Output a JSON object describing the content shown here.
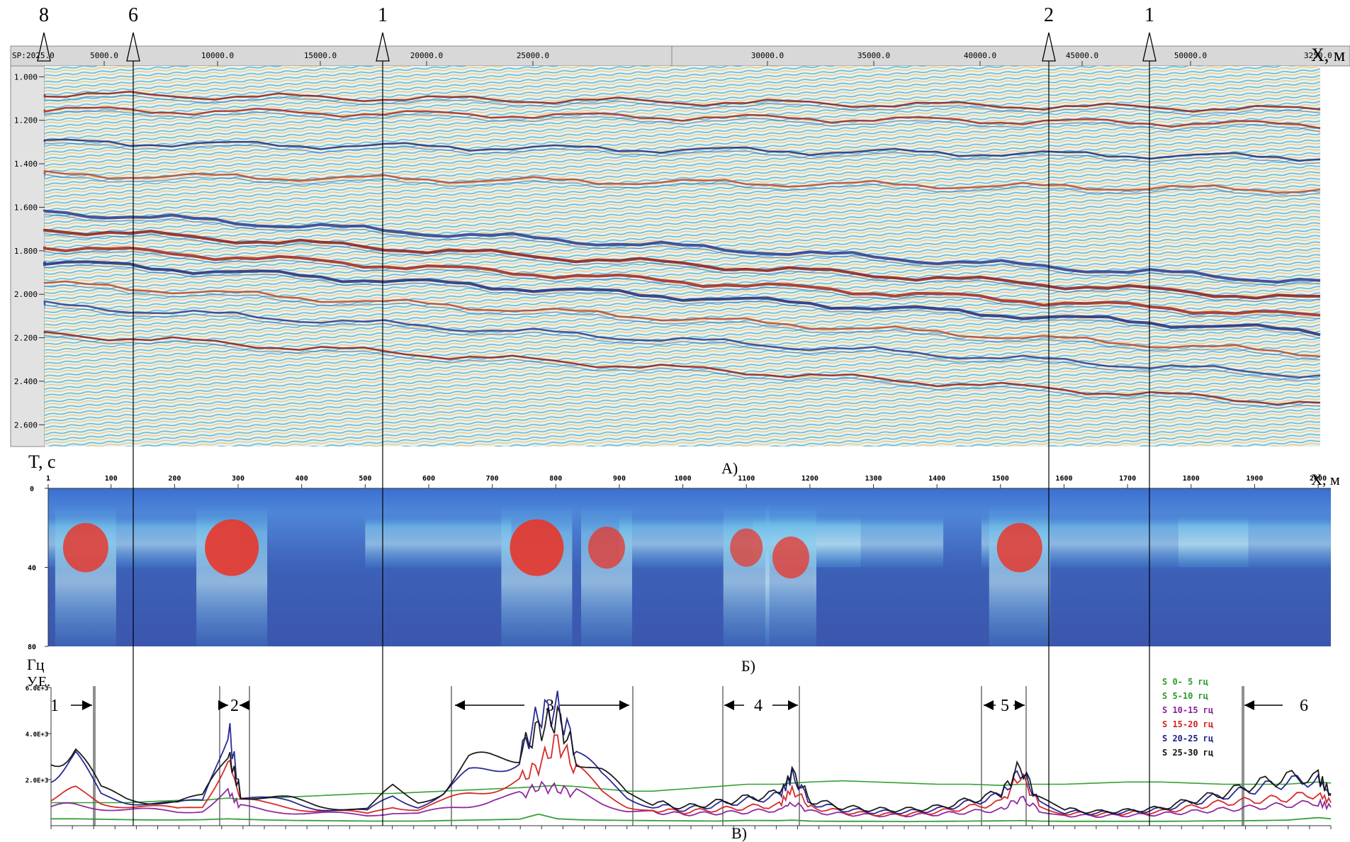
{
  "markers": {
    "top_labels": [
      "8",
      "6",
      "1",
      "2",
      "1"
    ]
  },
  "panel_a": {
    "caption": "А)",
    "sp_label": "SP:",
    "sp_start": "2025.0",
    "sp_end": "3250.0",
    "x_ticks": [
      "5000.0",
      "10000.0",
      "15000.0",
      "20000.0",
      "25000.0",
      "30000.0",
      "35000.0",
      "40000.0",
      "45000.0",
      "50000.0"
    ],
    "x_label": "X, м",
    "y_ticks": [
      "1.000",
      "1.200",
      "1.400",
      "1.600",
      "1.800",
      "2.000",
      "2.200",
      "2.400",
      "2.600"
    ],
    "y_label": "T, c"
  },
  "panel_b": {
    "caption": "Б)",
    "x_ticks": [
      "1",
      "100",
      "200",
      "300",
      "400",
      "500",
      "600",
      "700",
      "800",
      "900",
      "1000",
      "1100",
      "1200",
      "1300",
      "1400",
      "1500",
      "1600",
      "1700",
      "1800",
      "1900",
      "2000"
    ],
    "x_label": "X, м",
    "y_ticks": [
      "0",
      "40",
      "80"
    ],
    "y_label": "Гц"
  },
  "panel_c": {
    "caption": "В)",
    "y_label": "У.Е.",
    "y_ticks": [
      "6.0E+3",
      "4.0E+3",
      "2.0E+3"
    ],
    "zones": [
      {
        "label": "1"
      },
      {
        "label": "2"
      },
      {
        "label": "3"
      },
      {
        "label": "4"
      },
      {
        "label": "5"
      },
      {
        "label": "6"
      }
    ],
    "legend": [
      {
        "label": "S  0- 5 гц",
        "color": "#2a9b2a"
      },
      {
        "label": "S  5-10 гц",
        "color": "#2a9b2a"
      },
      {
        "label": "S 10-15 гц",
        "color": "#8b1f9a"
      },
      {
        "label": "S 15-20 гц",
        "color": "#d42020"
      },
      {
        "label": "S 20-25 гц",
        "color": "#1b1f8f"
      },
      {
        "label": "S 25-30 гц",
        "color": "#111111"
      }
    ]
  },
  "chart_data": [
    {
      "type": "heatmap",
      "x_start": 2025.0,
      "x_end": 3250.0,
      "xlabel": "X, м",
      "ylabel": "T, c",
      "ylim": [
        2.7,
        0.95
      ],
      "reflectors_t": [
        1.08,
        1.15,
        1.3,
        1.45,
        1.62,
        1.7,
        1.78,
        1.85,
        1.95,
        2.05,
        2.18
      ]
    },
    {
      "type": "heatmap",
      "xlim": [
        1,
        2020
      ],
      "ylim": [
        0,
        80
      ],
      "xlabel": "X, м",
      "ylabel": "Гц",
      "anomalies": [
        {
          "x": 60,
          "f": 30,
          "strength": 0.8
        },
        {
          "x": 290,
          "f": 30,
          "strength": 1.0
        },
        {
          "x": 770,
          "f": 30,
          "strength": 1.0
        },
        {
          "x": 880,
          "f": 30,
          "strength": 0.6
        },
        {
          "x": 1100,
          "f": 30,
          "strength": 0.5
        },
        {
          "x": 1170,
          "f": 35,
          "strength": 0.6
        },
        {
          "x": 1530,
          "f": 30,
          "strength": 0.8
        }
      ]
    },
    {
      "type": "line",
      "xlim": [
        1,
        2020
      ],
      "ylim": [
        0,
        6000
      ],
      "ylabel": "У.Е.",
      "x": [
        1,
        40,
        80,
        120,
        160,
        200,
        240,
        280,
        300,
        340,
        380,
        420,
        460,
        500,
        540,
        580,
        620,
        660,
        700,
        740,
        770,
        800,
        830,
        870,
        910,
        950,
        1000,
        1050,
        1100,
        1150,
        1170,
        1200,
        1250,
        1300,
        1350,
        1400,
        1450,
        1500,
        1530,
        1560,
        1600,
        1650,
        1700,
        1750,
        1800,
        1850,
        1900,
        1950,
        2000,
        2020
      ],
      "series": [
        {
          "name": "S  0- 5 гц",
          "values": [
            300,
            300,
            280,
            260,
            250,
            250,
            260,
            300,
            280,
            250,
            230,
            220,
            210,
            200,
            200,
            200,
            220,
            240,
            260,
            280,
            500,
            300,
            260,
            240,
            230,
            220,
            210,
            200,
            230,
            220,
            240,
            200,
            190,
            190,
            180,
            190,
            200,
            210,
            220,
            200,
            190,
            190,
            190,
            190,
            200,
            210,
            220,
            240,
            350,
            300
          ]
        },
        {
          "name": "S  5-10 гц",
          "values": [
            1000,
            1000,
            1000,
            1000,
            1050,
            1100,
            1100,
            1200,
            1150,
            1200,
            1250,
            1300,
            1350,
            1400,
            1400,
            1450,
            1500,
            1550,
            1600,
            1650,
            1700,
            1750,
            1700,
            1600,
            1500,
            1500,
            1600,
            1700,
            1800,
            1800,
            1850,
            1900,
            1950,
            1900,
            1850,
            1800,
            1800,
            1750,
            1800,
            1800,
            1800,
            1850,
            1900,
            1900,
            1850,
            1800,
            1800,
            1800,
            1900,
            1850
          ]
        },
        {
          "name": "S 10-15 гц",
          "values": [
            800,
            900,
            800,
            700,
            650,
            600,
            700,
            1500,
            800,
            650,
            600,
            550,
            500,
            450,
            600,
            500,
            700,
            900,
            1200,
            1300,
            1700,
            1600,
            1400,
            1000,
            700,
            600,
            500,
            550,
            600,
            700,
            1000,
            600,
            500,
            450,
            450,
            500,
            600,
            700,
            1200,
            700,
            450,
            420,
            450,
            500,
            600,
            700,
            800,
            900,
            1000,
            800
          ]
        },
        {
          "name": "S 15-20 гц",
          "values": [
            1200,
            1500,
            1000,
            900,
            800,
            700,
            900,
            3000,
            1100,
            900,
            800,
            700,
            600,
            500,
            900,
            700,
            1000,
            1400,
            1700,
            2000,
            2600,
            3700,
            2400,
            1400,
            900,
            700,
            600,
            700,
            800,
            900,
            1600,
            800,
            600,
            500,
            500,
            600,
            800,
            1000,
            2200,
            900,
            550,
            500,
            550,
            600,
            800,
            1000,
            1100,
            1200,
            1400,
            1000
          ]
        },
        {
          "name": "S 20-25 гц",
          "values": [
            2200,
            2900,
            1300,
            1100,
            1000,
            900,
            1100,
            4400,
            1300,
            1100,
            1000,
            800,
            700,
            600,
            1300,
            900,
            1300,
            2200,
            2600,
            3000,
            4800,
            5100,
            3300,
            2000,
            1200,
            900,
            700,
            900,
            1100,
            1300,
            2200,
            1000,
            700,
            600,
            600,
            700,
            1000,
            1300,
            2400,
            1000,
            600,
            550,
            600,
            700,
            1000,
            1300,
            1600,
            1900,
            2000,
            1300
          ]
        },
        {
          "name": "S 25-30 гц",
          "values": [
            2800,
            3400,
            1500,
            1200,
            1100,
            1000,
            1200,
            3200,
            1400,
            1200,
            1100,
            900,
            800,
            700,
            1600,
            1100,
            1500,
            2700,
            2900,
            3200,
            4200,
            4700,
            3000,
            2300,
            1300,
            1000,
            800,
            1000,
            1200,
            1400,
            2300,
            1100,
            800,
            700,
            700,
            800,
            1100,
            1400,
            2600,
            1100,
            700,
            600,
            650,
            750,
            1100,
            1400,
            1800,
            2100,
            2100,
            1400
          ]
        }
      ]
    }
  ]
}
